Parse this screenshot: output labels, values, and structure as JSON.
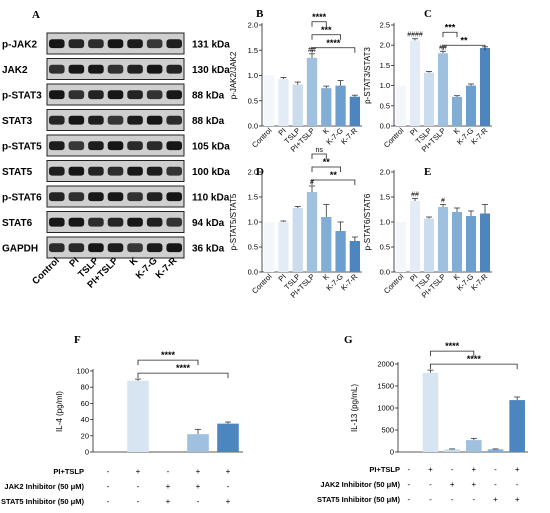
{
  "panels": {
    "A": {
      "letter": "A",
      "rows": [
        {
          "protein": "p-JAK2",
          "kda": "131 kDa"
        },
        {
          "protein": "JAK2",
          "kda": "130 kDa"
        },
        {
          "protein": "p-STAT3",
          "kda": "88 kDa"
        },
        {
          "protein": "STAT3",
          "kda": "88 kDa"
        },
        {
          "protein": "p-STAT5",
          "kda": "105 kDa"
        },
        {
          "protein": "STAT5",
          "kda": "100 kDa"
        },
        {
          "protein": "p-STAT6",
          "kda": "110  kDa"
        },
        {
          "protein": "STAT6",
          "kda": "94 kDa"
        },
        {
          "protein": "GAPDH",
          "kda": "36 kDa"
        }
      ],
      "lanes": [
        "Control",
        "PI",
        "TSLP",
        "PI+TSLP",
        "K",
        "K-7-G",
        "K-7-R"
      ]
    }
  },
  "chart_data": [
    {
      "panel": "B",
      "type": "bar",
      "categories": [
        "Control",
        "PI",
        "TSLP",
        "PI+TSLP",
        "K",
        "K-7-G",
        "K-7-R"
      ],
      "values": [
        1.0,
        0.93,
        0.82,
        1.35,
        0.75,
        0.8,
        0.58
      ],
      "errors": [
        0,
        0.03,
        0.05,
        0.08,
        0.04,
        0.1,
        0.03
      ],
      "ylabel": "p-JAK2/JAK2",
      "ylim": [
        0,
        2
      ],
      "yticks": [
        "0.0",
        "0.5",
        "1.0",
        "1.5",
        "2.0"
      ],
      "hash_labels": {
        "PI+TSLP": "##"
      },
      "sig": [
        {
          "from": "PI+TSLP",
          "to": "K",
          "label": "****"
        },
        {
          "from": "PI+TSLP",
          "to": "K-7-G",
          "label": "***"
        },
        {
          "from": "PI+TSLP",
          "to": "K-7-R",
          "label": "****"
        }
      ],
      "colors": [
        "#f3f6fb",
        "#e3ecf6",
        "#cbdcee",
        "#9fc0df",
        "#82aed6",
        "#6c9fcf",
        "#4d85bf"
      ]
    },
    {
      "panel": "C",
      "type": "bar",
      "categories": [
        "Control",
        "PI",
        "TSLP",
        "PI+TSLP",
        "K",
        "K-7-G",
        "K-7-R"
      ],
      "values": [
        1.0,
        2.12,
        1.32,
        1.8,
        0.72,
        1.0,
        1.93
      ],
      "errors": [
        0,
        0.04,
        0.03,
        0.05,
        0.03,
        0.04,
        0.03
      ],
      "ylabel": "p-STAT3/STAT3",
      "ylim": [
        0,
        2.5
      ],
      "yticks": [
        "0.0",
        "0.5",
        "1.0",
        "1.5",
        "2.0",
        "2.5"
      ],
      "hash_labels": {
        "PI": "####",
        "PI+TSLP": "##"
      },
      "sig": [
        {
          "from": "PI+TSLP",
          "to": "K",
          "label": "***"
        },
        {
          "from": "PI+TSLP",
          "to": "K-7-R",
          "label": "**"
        }
      ],
      "colors": [
        "#f3f6fb",
        "#e3ecf6",
        "#cbdcee",
        "#9fc0df",
        "#82aed6",
        "#6c9fcf",
        "#4d85bf"
      ]
    },
    {
      "panel": "D",
      "type": "bar",
      "categories": [
        "Control",
        "PI",
        "TSLP",
        "PI+TSLP",
        "K",
        "K-7-G",
        "K-7-R"
      ],
      "values": [
        1.0,
        1.0,
        1.28,
        1.6,
        1.1,
        0.82,
        0.62
      ],
      "errors": [
        0,
        0.02,
        0.03,
        0.12,
        0.25,
        0.18,
        0.08
      ],
      "ylabel": "p-STAT5/STAT5",
      "ylim": [
        0,
        2
      ],
      "yticks": [
        "0.0",
        "0.5",
        "1.0",
        "1.5",
        "2.0"
      ],
      "hash_labels": {
        "PI+TSLP": "#"
      },
      "sig": [
        {
          "from": "PI+TSLP",
          "to": "K",
          "label": "ns"
        },
        {
          "from": "PI+TSLP",
          "to": "K-7-G",
          "label": "**"
        },
        {
          "from": "PI+TSLP",
          "to": "K-7-R",
          "label": "**"
        }
      ],
      "colors": [
        "#f3f6fb",
        "#e3ecf6",
        "#cbdcee",
        "#9fc0df",
        "#82aed6",
        "#6c9fcf",
        "#4d85bf"
      ]
    },
    {
      "panel": "E",
      "type": "bar",
      "categories": [
        "Control",
        "PI",
        "TSLP",
        "PI+TSLP",
        "K",
        "K-7-G",
        "K-7-R"
      ],
      "values": [
        1.0,
        1.42,
        1.07,
        1.3,
        1.2,
        1.12,
        1.17
      ],
      "errors": [
        0,
        0.05,
        0.03,
        0.05,
        0.08,
        0.1,
        0.18
      ],
      "ylabel": "p-STAT6/STAT6",
      "ylim": [
        0,
        2
      ],
      "yticks": [
        "0.0",
        "0.5",
        "1.0",
        "1.5",
        "2.0"
      ],
      "hash_labels": {
        "PI": "##",
        "PI+TSLP": "#"
      },
      "sig": [],
      "colors": [
        "#f3f6fb",
        "#e3ecf6",
        "#cbdcee",
        "#9fc0df",
        "#82aed6",
        "#6c9fcf",
        "#4d85bf"
      ]
    },
    {
      "panel": "F",
      "type": "bar",
      "groups": 5,
      "values": [
        0,
        88,
        0,
        22,
        35
      ],
      "errors": [
        0,
        2,
        0,
        6,
        2
      ],
      "ylabel": "IL-4 (pg/ml)",
      "ylim": [
        0,
        100
      ],
      "yticks": [
        "0",
        "20",
        "40",
        "60",
        "80",
        "100"
      ],
      "conditions": [
        {
          "label": "PI+TSLP",
          "signs": [
            "-",
            "+",
            "-",
            "+",
            "+"
          ]
        },
        {
          "label": "JAK2 Inhibitor (50 μM)",
          "signs": [
            "-",
            "-",
            "+",
            "+",
            "-"
          ]
        },
        {
          "label": "STAT5 Inhibitor (50 μM)",
          "signs": [
            "-",
            "-",
            "+",
            "-",
            "+"
          ]
        }
      ],
      "sig": [
        {
          "from": 1,
          "to": 3,
          "label": "****"
        },
        {
          "from": 1,
          "to": 4,
          "label": "****"
        }
      ],
      "colors": [
        "#f3f6fb",
        "#d7e5f3",
        "#c5d9ee",
        "#9fc0df",
        "#4d85bf"
      ]
    },
    {
      "panel": "G",
      "type": "bar",
      "groups": 6,
      "values": [
        0,
        1800,
        60,
        270,
        60,
        1180
      ],
      "errors": [
        0,
        60,
        10,
        40,
        10,
        70
      ],
      "ylabel": "IL-13 (pg/mL)",
      "ylim": [
        0,
        2000
      ],
      "yticks": [
        "0",
        "500",
        "1000",
        "1500",
        "2000"
      ],
      "conditions": [
        {
          "label": "PI+TSLP",
          "signs": [
            "-",
            "+",
            "-",
            "+",
            "-",
            "+"
          ]
        },
        {
          "label": "JAK2 Inhibitor (50 μM)",
          "signs": [
            "-",
            "-",
            "+",
            "+",
            "-",
            "-"
          ]
        },
        {
          "label": "STAT5 Inhibitor (50 μM)",
          "signs": [
            "-",
            "-",
            "-",
            "-",
            "+",
            "+"
          ]
        }
      ],
      "sig": [
        {
          "from": 1,
          "to": 3,
          "label": "****"
        },
        {
          "from": 1,
          "to": 5,
          "label": "****"
        }
      ],
      "colors": [
        "#f3f6fb",
        "#d7e5f3",
        "#c5d9ee",
        "#9fc0df",
        "#82aed6",
        "#4d85bf"
      ]
    }
  ]
}
